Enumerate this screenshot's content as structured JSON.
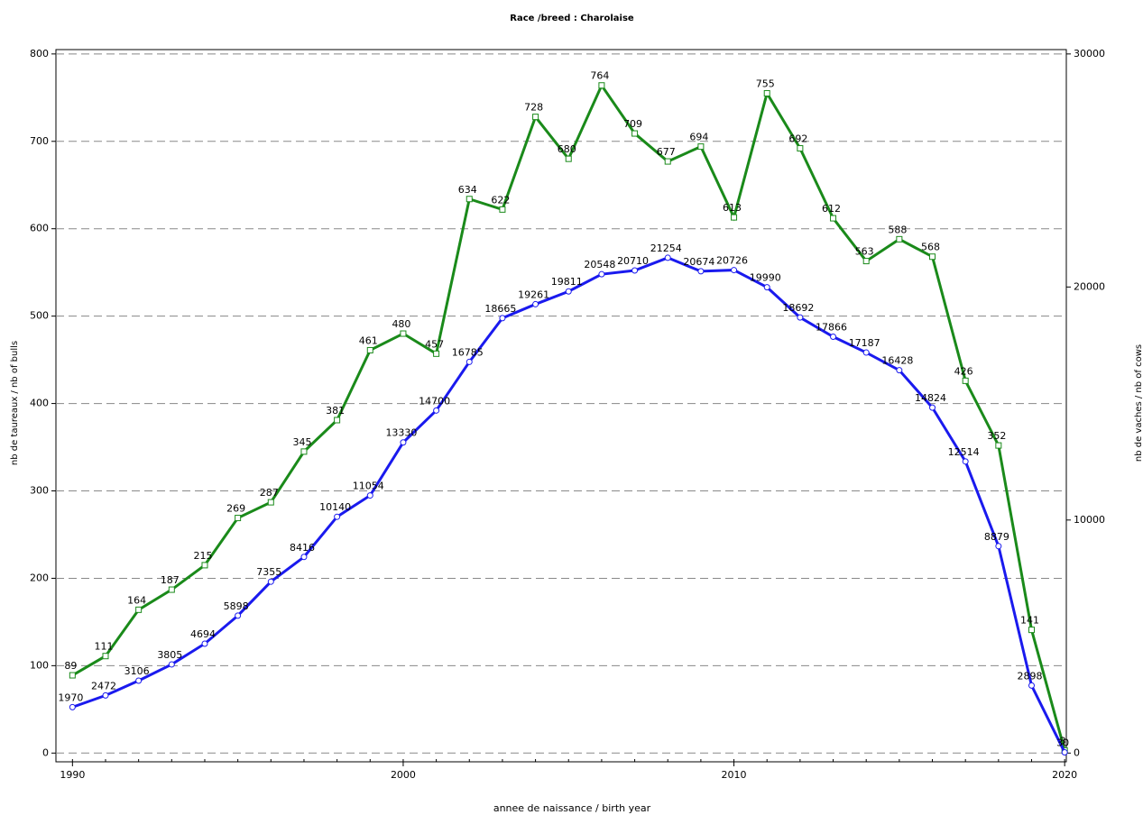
{
  "chart_data": {
    "type": "line",
    "title": "Race /breed : Charolaise",
    "xlabel": "annee de naissance / birth year",
    "ylabel": "nb de taureaux / nb of bulls",
    "y2label": "nb de vaches / nb of cows",
    "x": [
      1990,
      1991,
      1992,
      1993,
      1994,
      1995,
      1996,
      1997,
      1998,
      1999,
      2000,
      2001,
      2002,
      2003,
      2004,
      2005,
      2006,
      2007,
      2008,
      2009,
      2010,
      2011,
      2012,
      2013,
      2014,
      2015,
      2016,
      2017,
      2018,
      2019,
      2020
    ],
    "series": [
      {
        "name": "nb de taureaux / nb of bulls",
        "color": "#1a8a1a",
        "marker": "square",
        "values": [
          89,
          111,
          164,
          187,
          215,
          269,
          287,
          345,
          381,
          461,
          480,
          457,
          634,
          622,
          728,
          680,
          764,
          709,
          677,
          694,
          613,
          755,
          692,
          612,
          563,
          588,
          568,
          426,
          352,
          141,
          3
        ]
      },
      {
        "name": "nb de vaches / nb of cows",
        "color": "#1a1aee",
        "marker": "circle",
        "axis": "y2",
        "values": [
          1970,
          2472,
          3106,
          3805,
          4694,
          5898,
          7355,
          8416,
          10140,
          11054,
          13330,
          14700,
          16785,
          18665,
          19261,
          19811,
          20548,
          20710,
          21254,
          20674,
          20726,
          19990,
          18692,
          17866,
          17187,
          16428,
          14824,
          12514,
          8879,
          2898,
          30
        ]
      }
    ],
    "xlim": [
      1989.5,
      2020.05
    ],
    "xticks": [
      1990,
      2000,
      2010,
      2020
    ],
    "ylim": [
      -10,
      805
    ],
    "yticks": [
      0,
      100,
      200,
      300,
      400,
      500,
      600,
      700,
      800
    ],
    "y2lim": [
      -375,
      30187.5
    ],
    "y2ticks": [
      0,
      10000,
      20000,
      30000
    ],
    "grid": true
  }
}
